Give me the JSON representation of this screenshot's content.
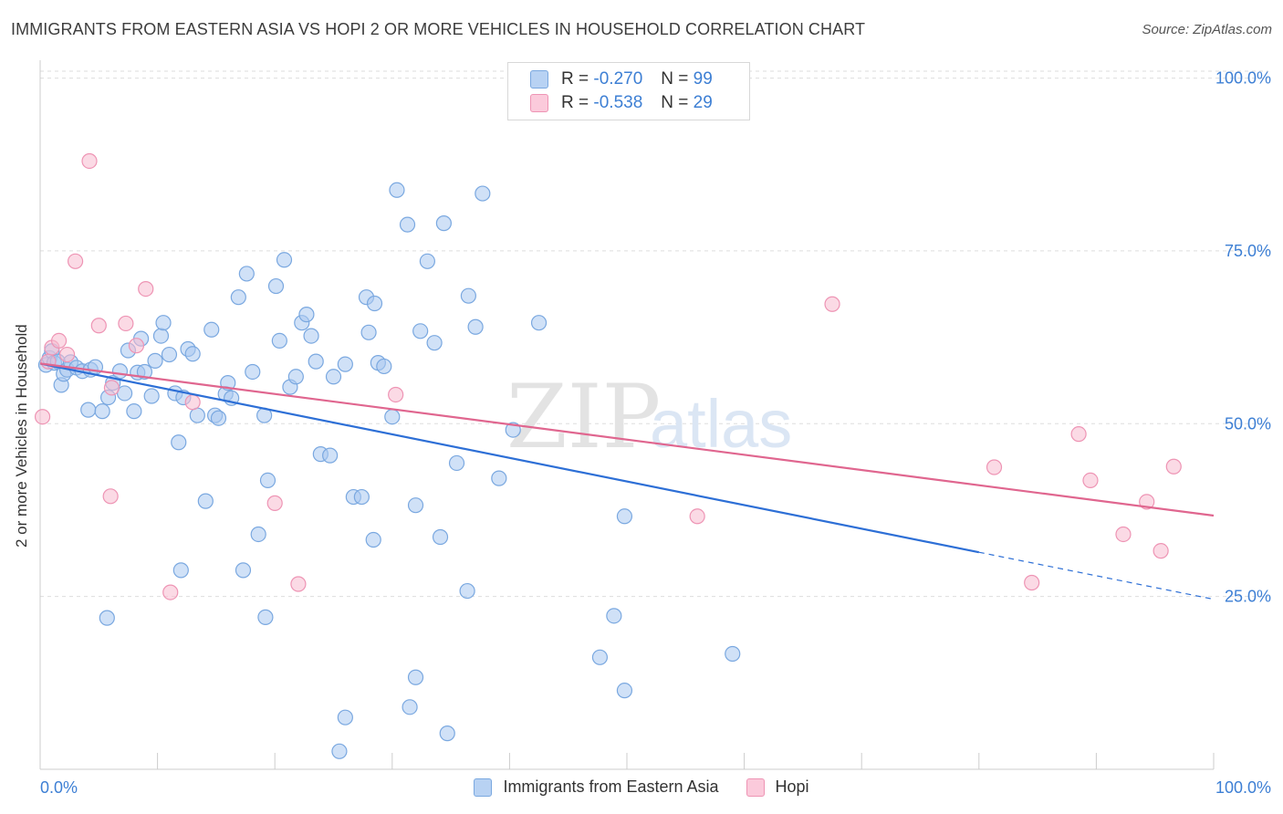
{
  "title": "IMMIGRANTS FROM EASTERN ASIA VS HOPI 2 OR MORE VEHICLES IN HOUSEHOLD CORRELATION CHART",
  "source": "Source: ZipAtlas.com",
  "watermark": {
    "zip": "ZIP",
    "atlas": "atlas"
  },
  "legend": {
    "r_label": "R =",
    "n_label": "N =",
    "rows": [
      {
        "r": "-0.270",
        "n": "99"
      },
      {
        "r": "-0.538",
        "n": "29"
      }
    ]
  },
  "bottom_legend": [
    "Immigrants from Eastern Asia",
    "Hopi"
  ],
  "colors": {
    "blue_fill": "#a9c8f0",
    "blue_stroke": "#7aa8e0",
    "blue_line": "#2d6fd6",
    "pink_fill": "#f7bcd0",
    "pink_stroke": "#ee94b4",
    "pink_line": "#e0668f",
    "tick_text": "#3d7fd4",
    "grid": "#dddddd"
  },
  "chart_data": {
    "type": "scatter",
    "xlabel": "",
    "ylabel": "2 or more Vehicles in Household",
    "xlim": [
      0,
      100
    ],
    "ylim": [
      0,
      101
    ],
    "x_tick_labels": [
      "0.0%",
      "100.0%"
    ],
    "y_ticks": [
      25,
      50,
      75,
      100
    ],
    "y_tick_labels": [
      "25.0%",
      "50.0%",
      "75.0%",
      "100.0%"
    ],
    "grid": true,
    "series": [
      {
        "name": "Immigrants from Eastern Asia",
        "color": "#a9c8f0",
        "trend": {
          "x": [
            0,
            80
          ],
          "y": [
            58.7,
            31.4
          ],
          "dashed_to_x": 100,
          "dashed_to_y": 24.6
        },
        "points": [
          [
            0.5,
            58.5
          ],
          [
            0.8,
            59.5
          ],
          [
            1.0,
            60.5
          ],
          [
            1.2,
            58.8
          ],
          [
            1.5,
            59.0
          ],
          [
            1.8,
            55.6
          ],
          [
            2.0,
            57.2
          ],
          [
            2.3,
            57.8
          ],
          [
            2.6,
            58.9
          ],
          [
            3.1,
            58.1
          ],
          [
            3.6,
            57.6
          ],
          [
            4.1,
            52.0
          ],
          [
            4.3,
            57.8
          ],
          [
            4.7,
            58.2
          ],
          [
            5.3,
            51.8
          ],
          [
            5.8,
            53.8
          ],
          [
            6.2,
            55.9
          ],
          [
            6.8,
            57.6
          ],
          [
            7.2,
            54.4
          ],
          [
            7.5,
            60.6
          ],
          [
            8.0,
            51.8
          ],
          [
            8.3,
            57.4
          ],
          [
            8.6,
            62.3
          ],
          [
            8.9,
            57.5
          ],
          [
            9.5,
            54.0
          ],
          [
            9.8,
            59.1
          ],
          [
            10.3,
            62.7
          ],
          [
            10.5,
            64.6
          ],
          [
            11.0,
            60.0
          ],
          [
            11.5,
            54.4
          ],
          [
            11.8,
            47.3
          ],
          [
            12.2,
            53.8
          ],
          [
            12.6,
            60.8
          ],
          [
            13.0,
            60.1
          ],
          [
            13.4,
            51.2
          ],
          [
            14.1,
            38.8
          ],
          [
            14.6,
            63.6
          ],
          [
            14.9,
            51.2
          ],
          [
            15.2,
            50.8
          ],
          [
            15.8,
            54.3
          ],
          [
            16.0,
            55.9
          ],
          [
            16.3,
            53.7
          ],
          [
            16.9,
            68.3
          ],
          [
            17.6,
            71.7
          ],
          [
            18.1,
            57.5
          ],
          [
            18.6,
            34.0
          ],
          [
            19.1,
            51.2
          ],
          [
            19.4,
            41.8
          ],
          [
            20.1,
            69.9
          ],
          [
            20.4,
            62.0
          ],
          [
            20.8,
            73.7
          ],
          [
            21.3,
            55.3
          ],
          [
            21.8,
            56.8
          ],
          [
            22.3,
            64.6
          ],
          [
            22.7,
            65.8
          ],
          [
            23.1,
            62.7
          ],
          [
            23.5,
            59.0
          ],
          [
            23.9,
            45.6
          ],
          [
            24.7,
            45.4
          ],
          [
            25.0,
            56.8
          ],
          [
            26.0,
            58.6
          ],
          [
            26.7,
            39.4
          ],
          [
            27.4,
            39.4
          ],
          [
            27.8,
            68.3
          ],
          [
            28.0,
            63.2
          ],
          [
            28.5,
            67.4
          ],
          [
            28.8,
            58.8
          ],
          [
            29.3,
            58.3
          ],
          [
            30.0,
            51.0
          ],
          [
            30.4,
            83.8
          ],
          [
            31.3,
            78.8
          ],
          [
            32.0,
            38.2
          ],
          [
            32.4,
            63.4
          ],
          [
            33.0,
            73.5
          ],
          [
            33.6,
            61.7
          ],
          [
            34.1,
            33.6
          ],
          [
            34.4,
            79.0
          ],
          [
            35.5,
            44.3
          ],
          [
            36.5,
            68.5
          ],
          [
            37.1,
            64.0
          ],
          [
            37.7,
            83.3
          ],
          [
            39.1,
            42.1
          ],
          [
            40.3,
            49.1
          ],
          [
            42.5,
            64.6
          ],
          [
            12.0,
            28.8
          ],
          [
            17.3,
            28.8
          ],
          [
            19.2,
            22.0
          ],
          [
            5.7,
            21.9
          ],
          [
            28.4,
            33.2
          ],
          [
            36.4,
            25.8
          ],
          [
            48.9,
            22.2
          ],
          [
            49.8,
            36.6
          ],
          [
            34.7,
            5.2
          ],
          [
            26.0,
            7.5
          ],
          [
            32.0,
            13.3
          ],
          [
            31.5,
            9.0
          ],
          [
            47.7,
            16.2
          ],
          [
            49.8,
            11.4
          ],
          [
            59.0,
            16.7
          ],
          [
            25.5,
            2.6
          ]
        ]
      },
      {
        "name": "Hopi",
        "color": "#f7bcd0",
        "trend": {
          "x": [
            0,
            100
          ],
          "y": [
            58.7,
            36.7
          ]
        },
        "points": [
          [
            0.2,
            51.0
          ],
          [
            0.7,
            59.0
          ],
          [
            1.0,
            61.0
          ],
          [
            1.6,
            62.0
          ],
          [
            2.3,
            60.0
          ],
          [
            3.0,
            73.5
          ],
          [
            4.2,
            88.0
          ],
          [
            5.0,
            64.2
          ],
          [
            6.1,
            55.2
          ],
          [
            6.0,
            39.5
          ],
          [
            7.3,
            64.5
          ],
          [
            8.2,
            61.3
          ],
          [
            9.0,
            69.5
          ],
          [
            11.1,
            25.6
          ],
          [
            13.0,
            53.1
          ],
          [
            20.0,
            38.5
          ],
          [
            22.0,
            26.8
          ],
          [
            30.3,
            54.2
          ],
          [
            56.0,
            36.6
          ],
          [
            67.5,
            67.3
          ],
          [
            81.3,
            43.7
          ],
          [
            84.5,
            27.0
          ],
          [
            88.5,
            48.5
          ],
          [
            89.5,
            41.8
          ],
          [
            92.3,
            34.0
          ],
          [
            94.3,
            38.7
          ],
          [
            95.5,
            31.6
          ],
          [
            96.6,
            43.8
          ]
        ]
      }
    ]
  }
}
